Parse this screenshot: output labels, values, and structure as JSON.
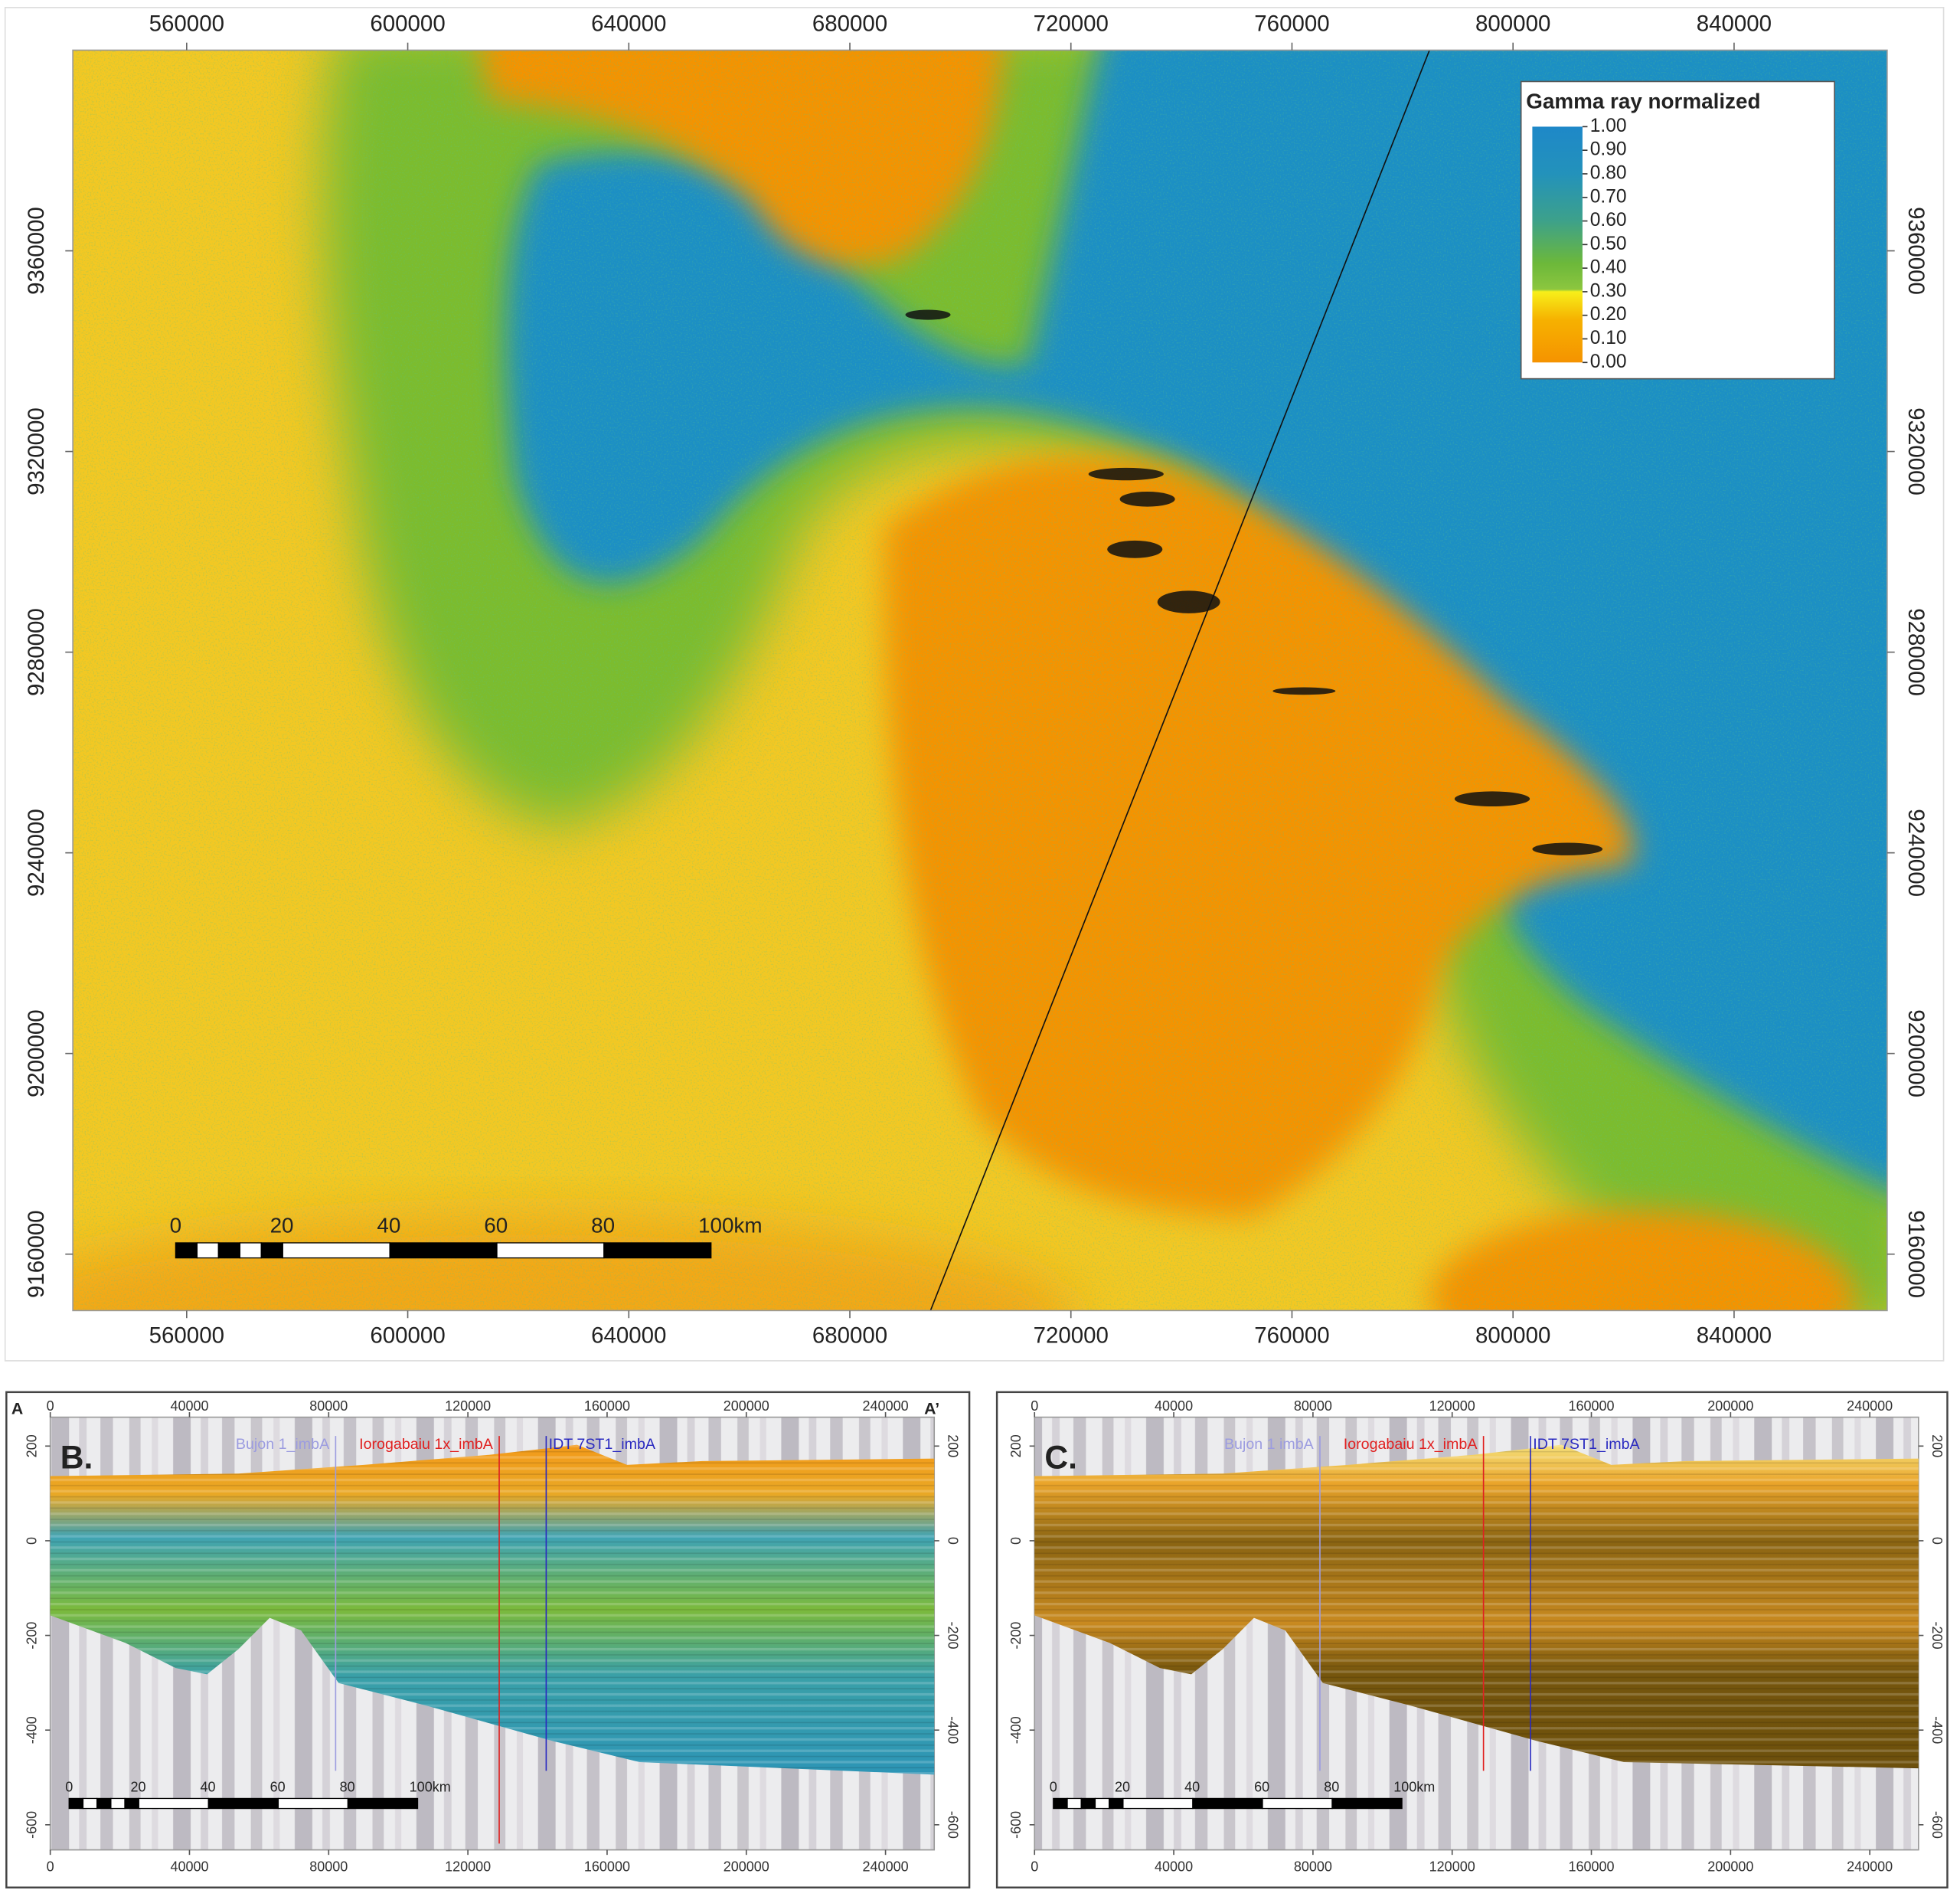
{
  "map": {
    "xlim": [
      539400,
      867700
    ],
    "ylim": [
      9148750,
      9400000
    ],
    "xticks": [
      560000,
      600000,
      640000,
      680000,
      720000,
      760000,
      800000,
      840000
    ],
    "yticks": [
      9160000,
      9200000,
      9240000,
      9280000,
      9320000,
      9360000
    ],
    "legend": {
      "title": "Gamma ray normalized",
      "ticks": [
        {
          "value": 1,
          "label": "1.00"
        },
        {
          "value": 0.9,
          "label": "0.90"
        },
        {
          "value": 0.8,
          "label": "0.80"
        },
        {
          "value": 0.7,
          "label": "0.70"
        },
        {
          "value": 0.6,
          "label": "0.60"
        },
        {
          "value": 0.5,
          "label": "0.50"
        },
        {
          "value": 0.4,
          "label": "0.40"
        },
        {
          "value": 0.3,
          "label": "0.30"
        },
        {
          "value": 0.2,
          "label": "0.20"
        },
        {
          "value": 0.1,
          "label": "0.10"
        },
        {
          "value": 0,
          "label": "0.00"
        }
      ]
    },
    "scale_bar": {
      "labels": [
        "0",
        "20",
        "40",
        "60",
        "80",
        "100km"
      ]
    }
  },
  "sections": [
    {
      "panel": "B.",
      "start": "A",
      "end": "A’",
      "xlim": [
        0,
        254000
      ],
      "ylim": [
        -653,
        261
      ],
      "xticks": [
        0,
        40000,
        80000,
        120000,
        160000,
        200000,
        240000
      ],
      "yticks": [
        200,
        0,
        -200,
        -400,
        -600
      ],
      "wells": [
        {
          "name": "Bujon 1_imbA",
          "x": 82000,
          "color": "#9c9ce0"
        },
        {
          "name": "Iorogabaiu 1x_imbA",
          "x": 129000,
          "color": "#e02020"
        },
        {
          "name": "IDT 7ST1_imbA",
          "x": 142500,
          "color": "#2a2ac0"
        }
      ],
      "scale_bar": {
        "labels": [
          "0",
          "20",
          "40",
          "60",
          "80",
          "100km"
        ]
      }
    },
    {
      "panel": "C.",
      "xlim": [
        0,
        254000
      ],
      "ylim": [
        -653,
        261
      ],
      "xticks": [
        0,
        40000,
        80000,
        120000,
        160000,
        200000,
        240000
      ],
      "yticks": [
        200,
        0,
        -200,
        -400,
        -600
      ],
      "wells": [
        {
          "name": "Bujon 1 imbA",
          "x": 82000,
          "color": "#9c9ce0"
        },
        {
          "name": "Iorogabaiu 1x_imbA",
          "x": 129000,
          "color": "#e02020"
        },
        {
          "name": "IDT 7ST1_imbA",
          "x": 142500,
          "color": "#2a2ac0"
        }
      ],
      "scale_bar": {
        "labels": [
          "0",
          "20",
          "40",
          "60",
          "80",
          "100km"
        ]
      }
    }
  ]
}
